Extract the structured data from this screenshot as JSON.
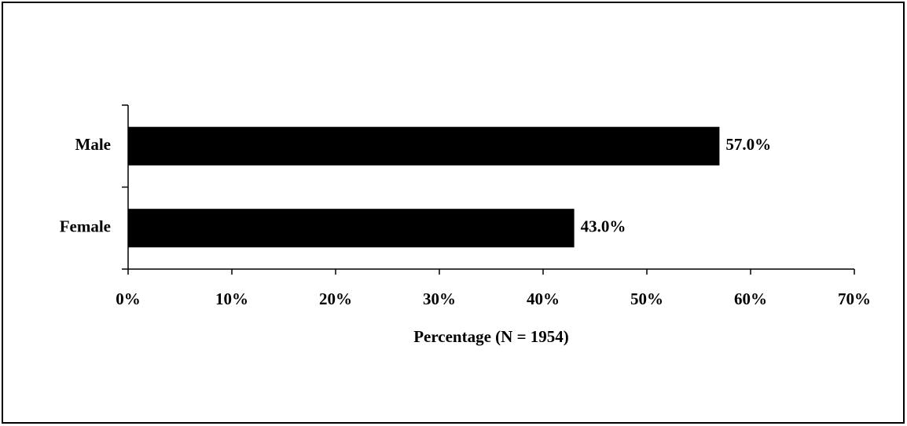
{
  "chart_data": {
    "type": "bar",
    "orientation": "horizontal",
    "categories": [
      "Male",
      "Female"
    ],
    "values": [
      57,
      43
    ],
    "value_labels": [
      "57.0%",
      "43.0%"
    ],
    "color": "#000000",
    "x_label": "Percentage (N = 1954)",
    "xlim": [
      0,
      70
    ],
    "xticks": [
      {
        "value": 0,
        "label": "0%"
      },
      {
        "value": 10,
        "label": "10%"
      },
      {
        "value": 20,
        "label": "20%"
      },
      {
        "value": 30,
        "label": "30%"
      },
      {
        "value": 40,
        "label": "40%"
      },
      {
        "value": 50,
        "label": "50%"
      },
      {
        "value": 60,
        "label": "60%"
      },
      {
        "value": 70,
        "label": "70%"
      }
    ],
    "grid": false
  }
}
